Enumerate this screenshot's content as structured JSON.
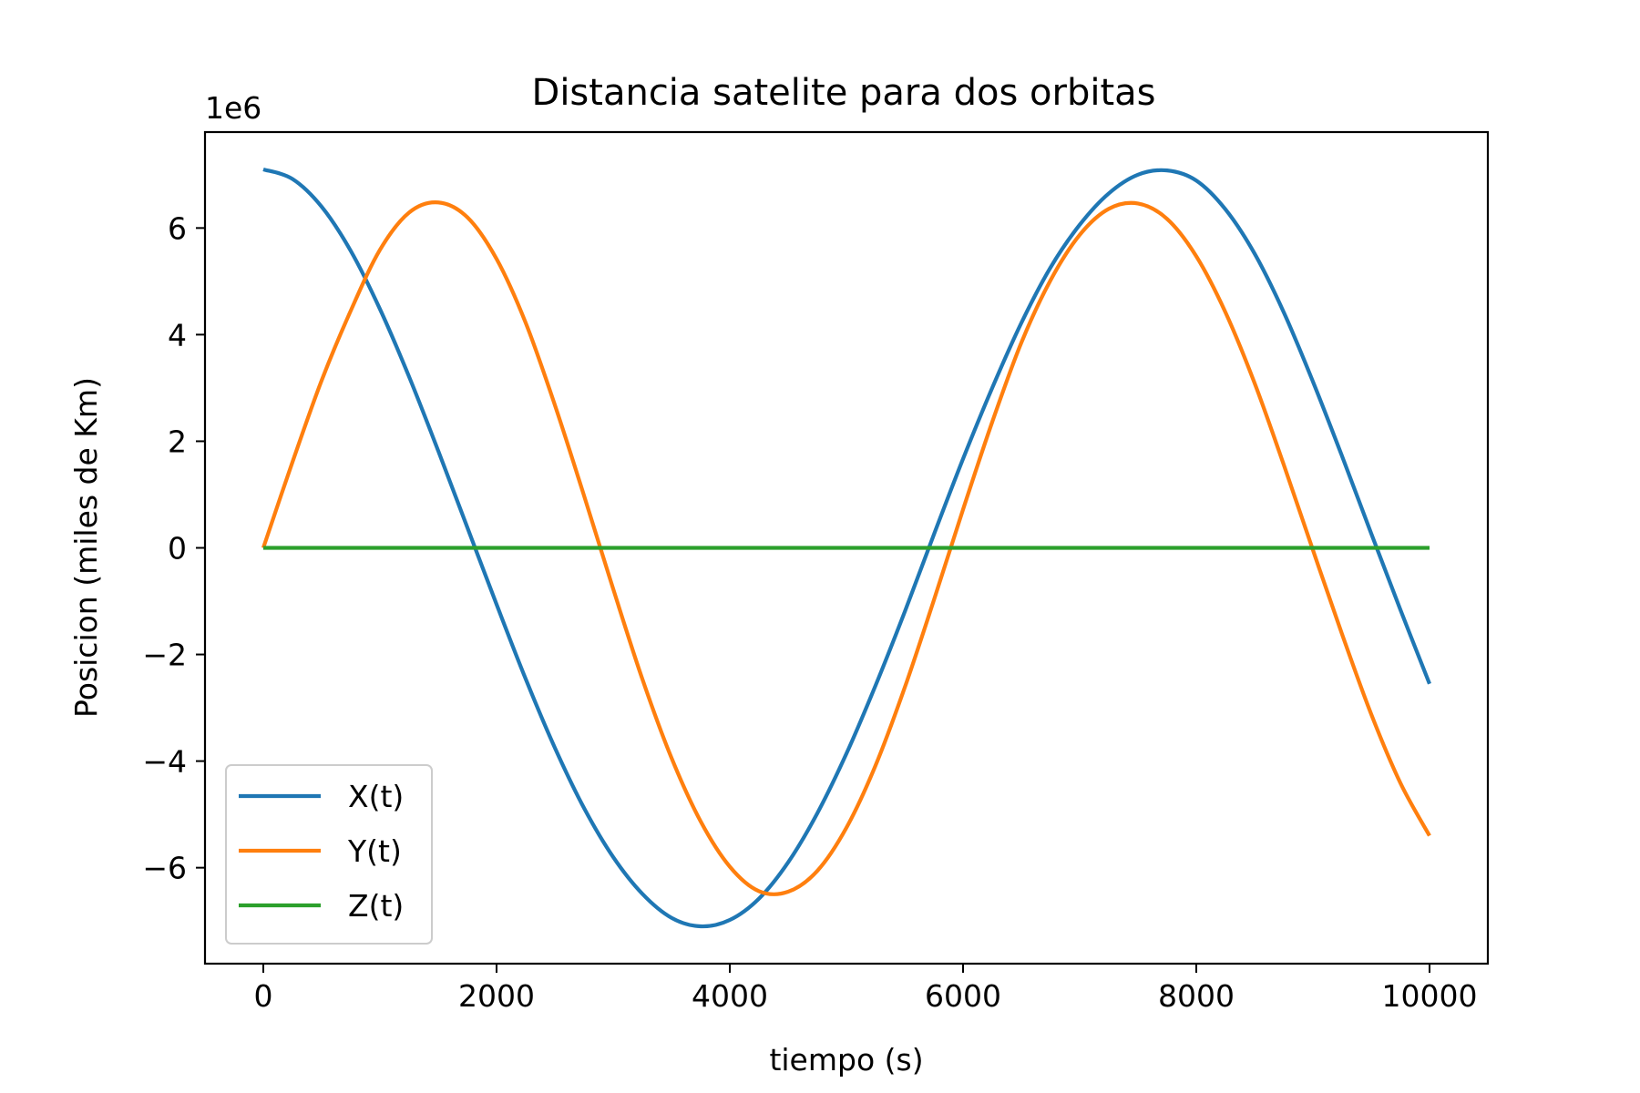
{
  "chart_data": {
    "type": "line",
    "title": "Distancia satelite para dos orbitas",
    "xlabel": "tiempo (s)",
    "ylabel": "Posicion (miles de Km)",
    "y_offset_label": "1e6",
    "xlim": [
      -500,
      10500
    ],
    "ylim": [
      -7.8,
      7.8
    ],
    "y_scale_factor": 1000000,
    "x_ticks": [
      0,
      2000,
      4000,
      6000,
      8000,
      10000
    ],
    "x_tick_labels": [
      "0",
      "2000",
      "4000",
      "6000",
      "8000",
      "10000"
    ],
    "y_ticks": [
      -6,
      -4,
      -2,
      0,
      2,
      4,
      6
    ],
    "y_tick_labels": [
      "−6",
      "−4",
      "−2",
      "0",
      "2",
      "4",
      "6"
    ],
    "grid": false,
    "legend_position": "lower-left",
    "x": [
      0,
      250,
      500,
      750,
      1000,
      1250,
      1500,
      1750,
      2000,
      2250,
      2500,
      2750,
      3000,
      3250,
      3500,
      3750,
      4000,
      4250,
      4500,
      4750,
      5000,
      5250,
      5500,
      5750,
      6000,
      6250,
      6500,
      6750,
      7000,
      7250,
      7500,
      7750,
      8000,
      8250,
      8500,
      8750,
      9000,
      9250,
      9500,
      9750,
      10000
    ],
    "series": [
      {
        "name": "X(t)",
        "color": "#1f77b4",
        "values": [
          7.1,
          6.92,
          6.4,
          5.57,
          4.48,
          3.21,
          1.82,
          0.38,
          -1.06,
          -2.46,
          -3.75,
          -4.88,
          -5.8,
          -6.49,
          -6.94,
          -7.1,
          -6.98,
          -6.58,
          -5.9,
          -4.98,
          -3.86,
          -2.58,
          -1.2,
          0.25,
          1.67,
          3.0,
          4.22,
          5.26,
          6.06,
          6.65,
          7.0,
          7.08,
          6.89,
          6.35,
          5.52,
          4.42,
          3.12,
          1.72,
          0.27,
          -1.16,
          -2.55
        ]
      },
      {
        "name": "Y(t)",
        "color": "#ff7f0e",
        "values": [
          0.0,
          1.61,
          3.14,
          4.45,
          5.59,
          6.29,
          6.48,
          6.2,
          5.42,
          4.22,
          2.68,
          0.98,
          -0.77,
          -2.46,
          -3.94,
          -5.13,
          -5.98,
          -6.44,
          -6.45,
          -6.06,
          -5.25,
          -4.08,
          -2.62,
          -0.98,
          0.72,
          2.36,
          3.85,
          5.02,
          5.87,
          6.36,
          6.46,
          6.17,
          5.47,
          4.42,
          3.09,
          1.56,
          -0.04,
          -1.62,
          -3.12,
          -4.41,
          -5.4
        ]
      },
      {
        "name": "Z(t)",
        "color": "#2ca02c",
        "values": [
          0,
          0,
          0,
          0,
          0,
          0,
          0,
          0,
          0,
          0,
          0,
          0,
          0,
          0,
          0,
          0,
          0,
          0,
          0,
          0,
          0,
          0,
          0,
          0,
          0,
          0,
          0,
          0,
          0,
          0,
          0,
          0,
          0,
          0,
          0,
          0,
          0,
          0,
          0,
          0,
          0
        ]
      }
    ]
  }
}
